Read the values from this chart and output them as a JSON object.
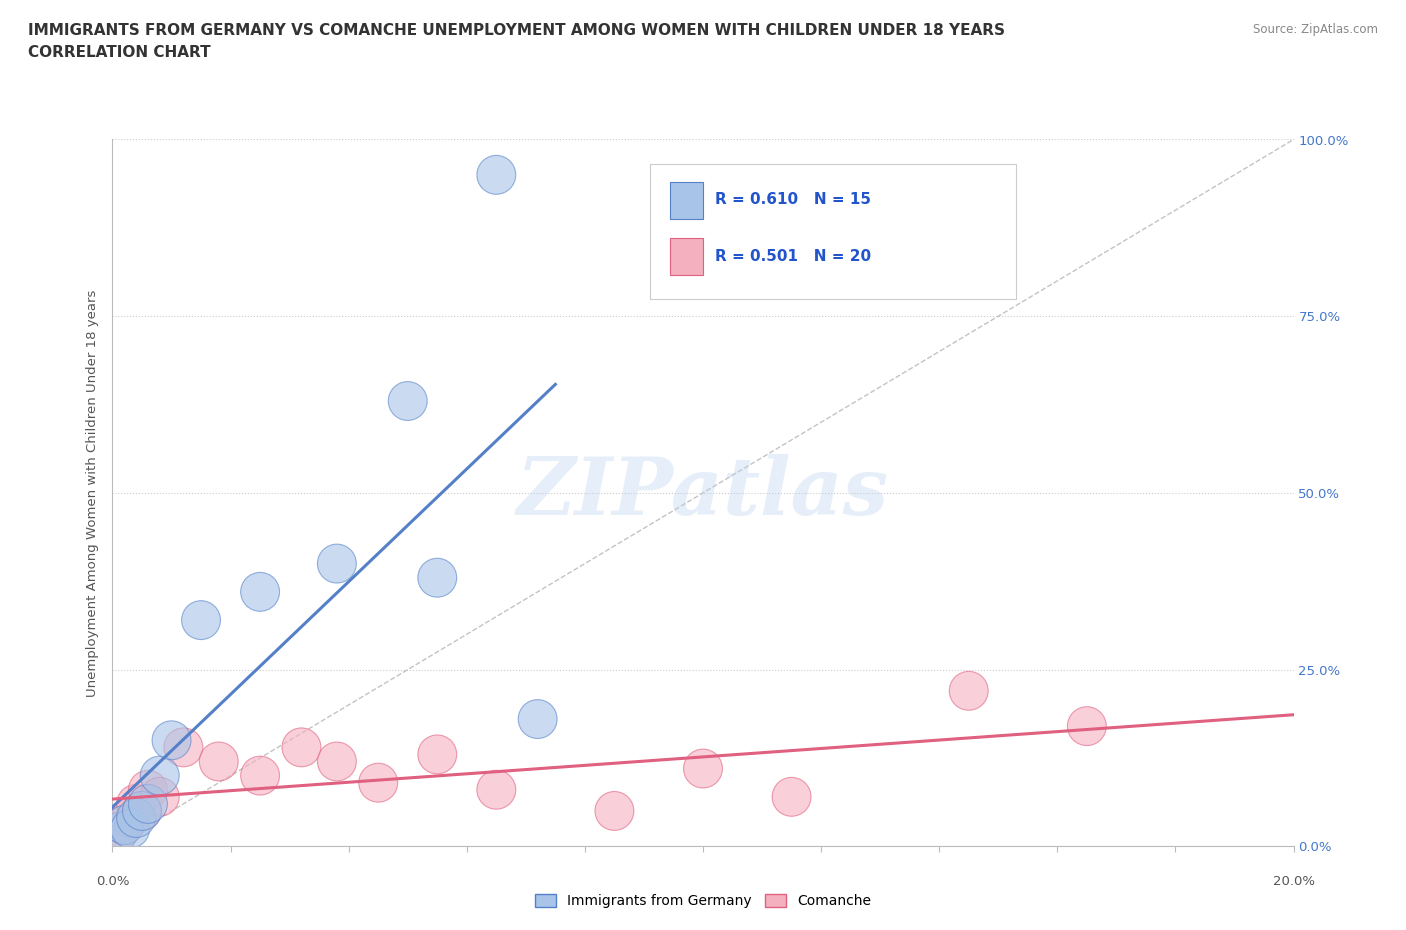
{
  "title_line1": "IMMIGRANTS FROM GERMANY VS COMANCHE UNEMPLOYMENT AMONG WOMEN WITH CHILDREN UNDER 18 YEARS",
  "title_line2": "CORRELATION CHART",
  "source": "Source: ZipAtlas.com",
  "ylabel": "Unemployment Among Women with Children Under 18 years",
  "xlim": [
    0.0,
    0.2
  ],
  "ylim": [
    0.0,
    1.0
  ],
  "xticks": [
    0.0,
    0.02,
    0.04,
    0.06,
    0.08,
    0.1,
    0.12,
    0.14,
    0.16,
    0.18,
    0.2
  ],
  "ytick_positions": [
    0.0,
    0.25,
    0.5,
    0.75,
    1.0
  ],
  "right_ytick_labels": [
    "100.0%",
    "75.0%",
    "50.0%",
    "25.0%",
    "0.0%"
  ],
  "series1_name": "Immigrants from Germany",
  "series1_color": "#a8c4e8",
  "series1_edge_color": "#5580c8",
  "series1_R": 0.61,
  "series1_N": 15,
  "series1_x": [
    0.001,
    0.002,
    0.003,
    0.004,
    0.005,
    0.006,
    0.008,
    0.01,
    0.015,
    0.025,
    0.038,
    0.05,
    0.055,
    0.065,
    0.072
  ],
  "series1_y": [
    0.02,
    0.03,
    0.025,
    0.04,
    0.05,
    0.06,
    0.1,
    0.15,
    0.32,
    0.36,
    0.4,
    0.63,
    0.38,
    0.95,
    0.18
  ],
  "series2_name": "Comanche",
  "series2_color": "#f5b0c0",
  "series2_edge_color": "#e06080",
  "series2_R": 0.501,
  "series2_N": 20,
  "series2_x": [
    0.001,
    0.002,
    0.003,
    0.004,
    0.005,
    0.006,
    0.008,
    0.012,
    0.018,
    0.025,
    0.032,
    0.038,
    0.045,
    0.055,
    0.065,
    0.085,
    0.1,
    0.115,
    0.145,
    0.165
  ],
  "series2_y": [
    0.02,
    0.03,
    0.04,
    0.06,
    0.05,
    0.08,
    0.07,
    0.14,
    0.12,
    0.1,
    0.14,
    0.12,
    0.09,
    0.13,
    0.08,
    0.05,
    0.11,
    0.07,
    0.22,
    0.17
  ],
  "watermark_text": "ZIPatlas",
  "background_color": "#ffffff",
  "grid_color": "#cccccc",
  "title_color": "#333333",
  "legend_text_color": "#2255cc"
}
